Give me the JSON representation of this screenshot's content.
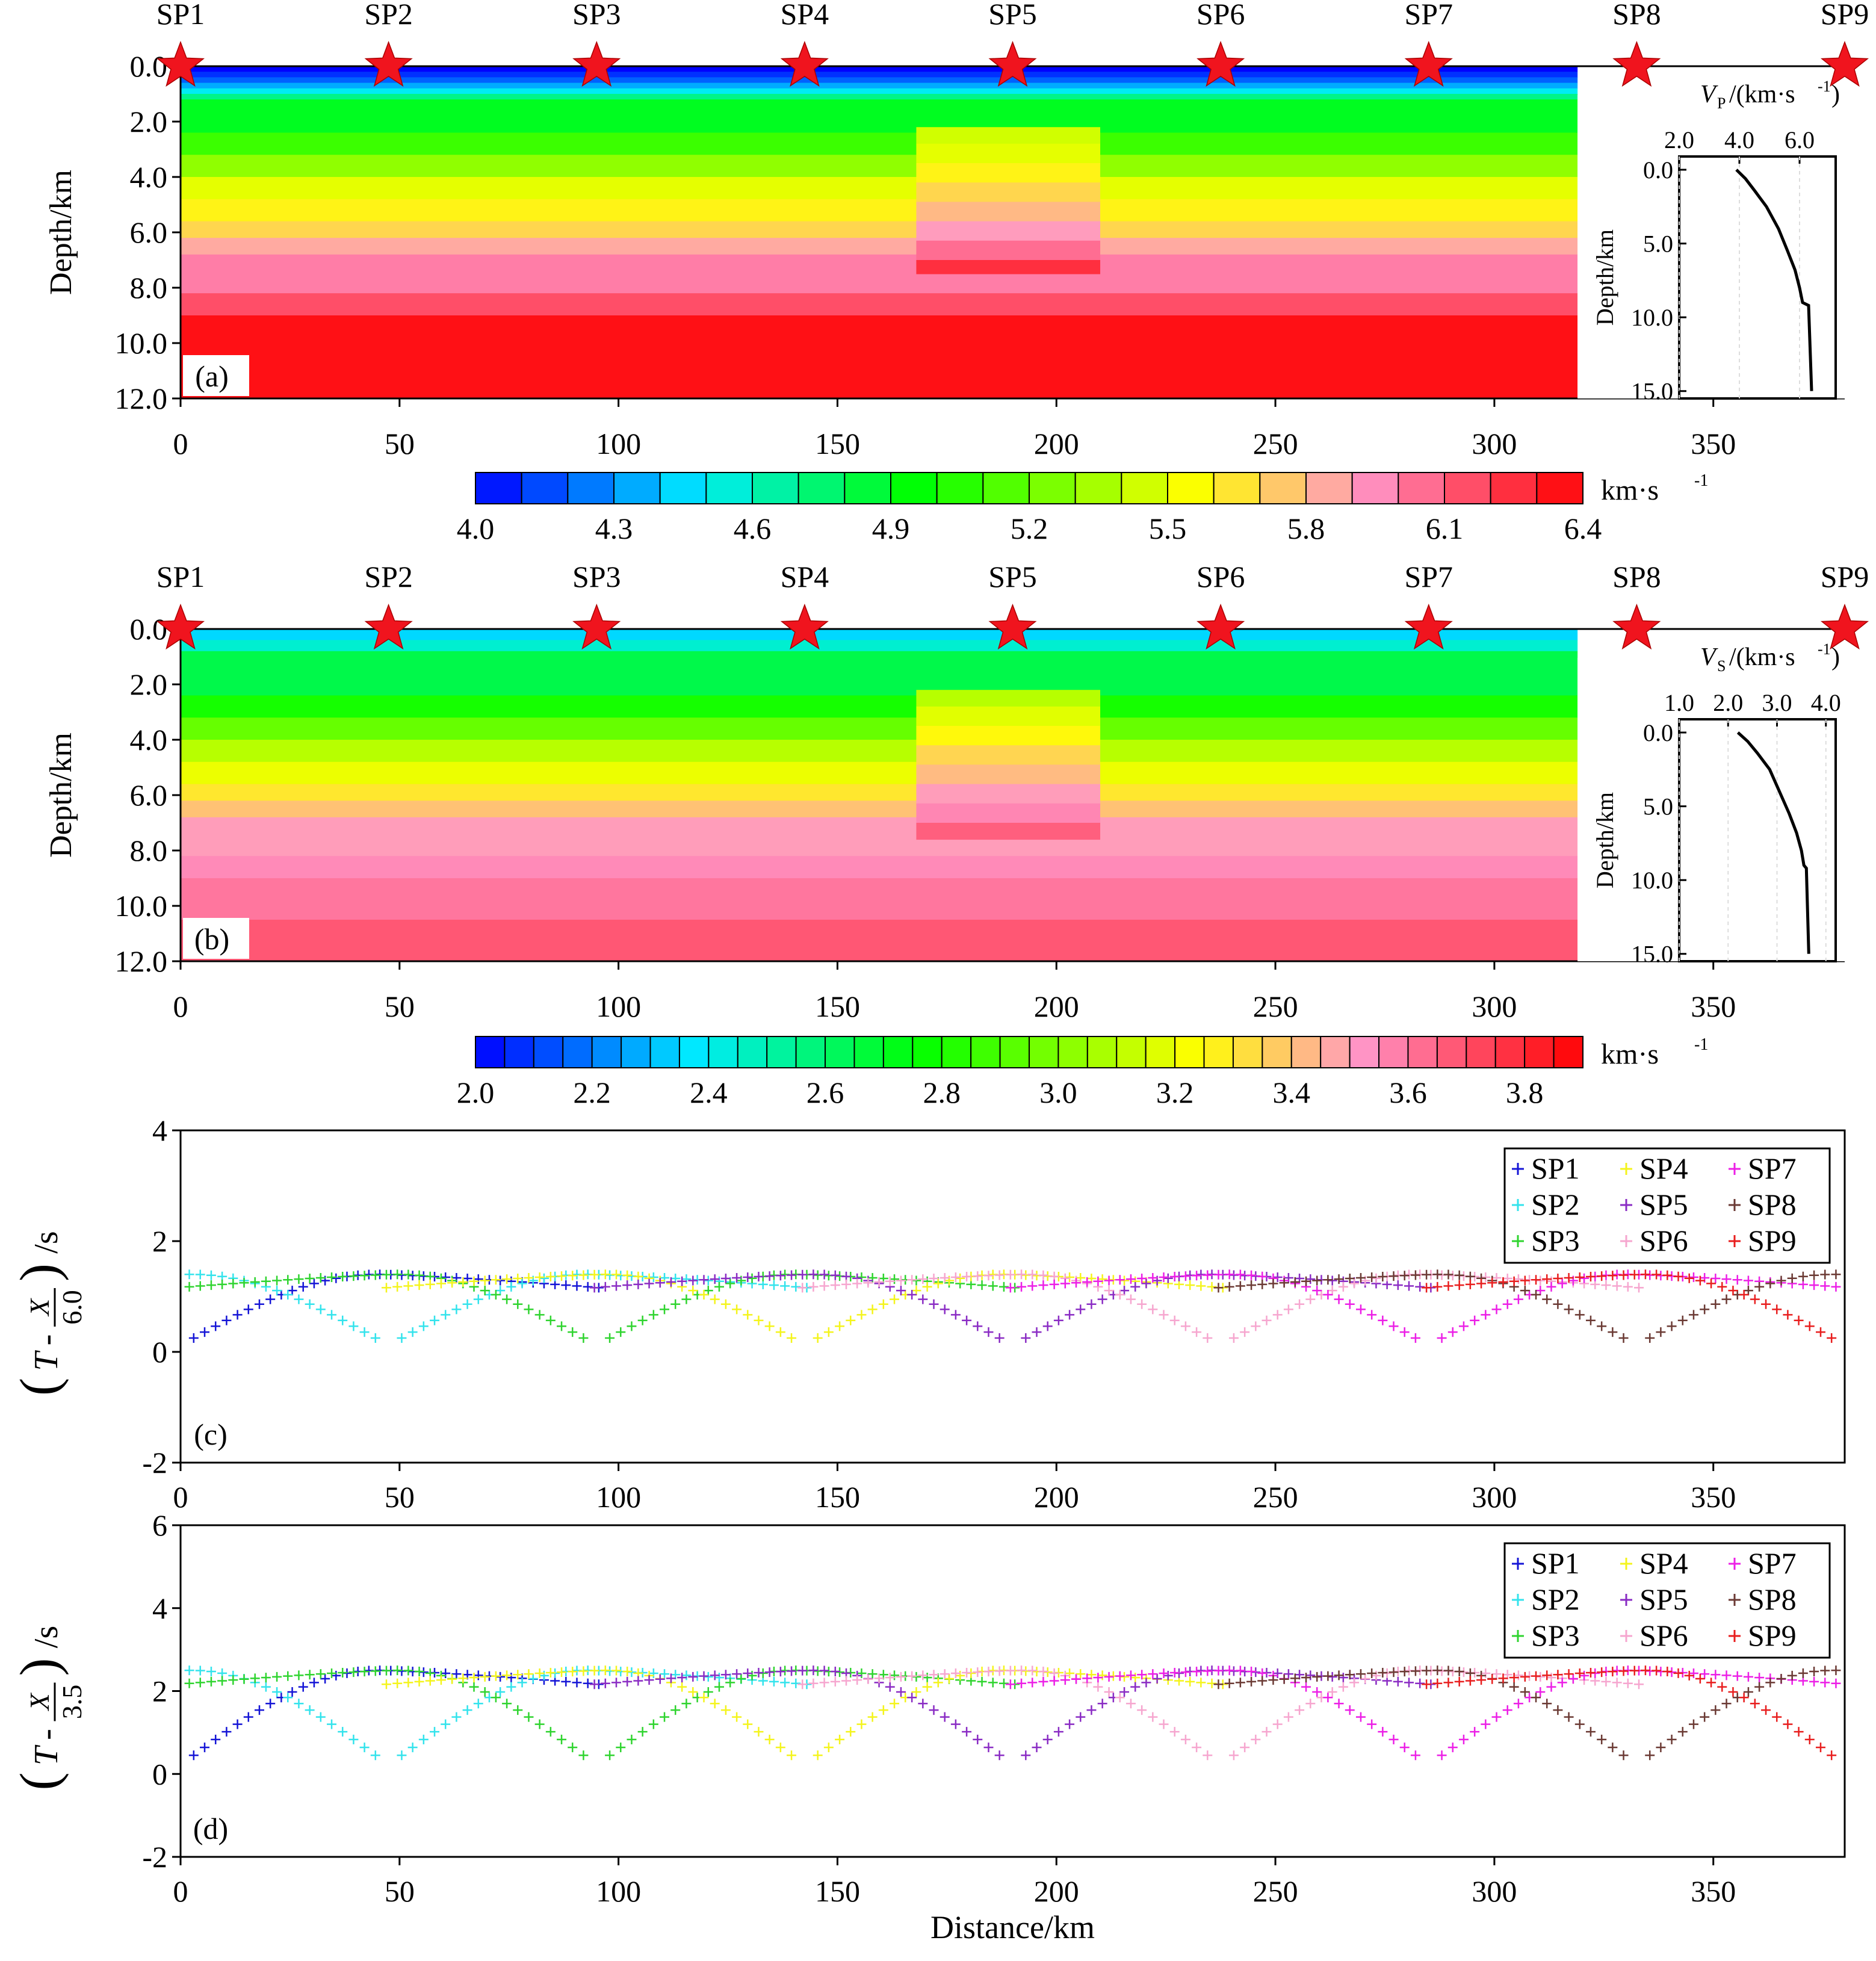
{
  "chart_data": [
    {
      "type": "heatmap",
      "panel_label": "(a)",
      "ylabel": "Depth/km",
      "xlim": [
        0,
        380
      ],
      "ylim": [
        0,
        12
      ],
      "xticks": [
        "0",
        "50",
        "100",
        "150",
        "200",
        "250",
        "300",
        "350"
      ],
      "yticks": [
        "0.0",
        "2.0",
        "4.0",
        "6.0",
        "8.0",
        "10.0",
        "12.0"
      ],
      "model_extent_km": 319,
      "shot_points": [
        {
          "label": "SP1",
          "x": 0
        },
        {
          "label": "SP2",
          "x": 47.5
        },
        {
          "label": "SP3",
          "x": 95
        },
        {
          "label": "SP4",
          "x": 142.5
        },
        {
          "label": "SP5",
          "x": 190
        },
        {
          "label": "SP6",
          "x": 237.5
        },
        {
          "label": "SP7",
          "x": 285
        },
        {
          "label": "SP8",
          "x": 332.5
        },
        {
          "label": "SP9",
          "x": 380
        }
      ],
      "layers": [
        {
          "top": 0.0,
          "bottom": 0.2,
          "v": 4.0
        },
        {
          "top": 0.2,
          "bottom": 0.4,
          "v": 4.1
        },
        {
          "top": 0.4,
          "bottom": 0.6,
          "v": 4.2
        },
        {
          "top": 0.6,
          "bottom": 0.8,
          "v": 4.35
        },
        {
          "top": 0.8,
          "bottom": 1.0,
          "v": 4.5
        },
        {
          "top": 1.0,
          "bottom": 1.2,
          "v": 4.7
        },
        {
          "top": 1.2,
          "bottom": 2.4,
          "v": 4.9
        },
        {
          "top": 2.4,
          "bottom": 3.2,
          "v": 5.1
        },
        {
          "top": 3.2,
          "bottom": 4.0,
          "v": 5.3
        },
        {
          "top": 4.0,
          "bottom": 4.8,
          "v": 5.5
        },
        {
          "top": 4.8,
          "bottom": 5.6,
          "v": 5.6
        },
        {
          "top": 5.6,
          "bottom": 6.2,
          "v": 5.7
        },
        {
          "top": 6.2,
          "bottom": 6.8,
          "v": 5.85
        },
        {
          "top": 6.8,
          "bottom": 8.2,
          "v": 6.0
        },
        {
          "top": 8.2,
          "bottom": 9.0,
          "v": 6.15
        },
        {
          "top": 9.0,
          "bottom": 12.0,
          "v": 6.35
        }
      ],
      "anomaly": {
        "x_range": [
          168,
          210
        ],
        "layers": [
          {
            "top": 2.2,
            "bottom": 2.8,
            "v": 5.45
          },
          {
            "top": 2.8,
            "bottom": 3.5,
            "v": 5.5
          },
          {
            "top": 3.5,
            "bottom": 4.2,
            "v": 5.6
          },
          {
            "top": 4.2,
            "bottom": 4.9,
            "v": 5.7
          },
          {
            "top": 4.9,
            "bottom": 5.6,
            "v": 5.8
          },
          {
            "top": 5.6,
            "bottom": 6.3,
            "v": 5.9
          },
          {
            "top": 6.3,
            "bottom": 7.0,
            "v": 6.05
          },
          {
            "top": 7.0,
            "bottom": 7.5,
            "v": 6.25
          }
        ]
      },
      "inset": {
        "xlabel_var": "V",
        "xlabel_sub": "P",
        "xlabel_unit": "/(km·s",
        "xlim": [
          2.0,
          7.2
        ],
        "ylim": [
          0,
          15.5
        ],
        "xticks": [
          "2.0",
          "4.0",
          "6.0"
        ],
        "yticks": [
          "0.0",
          "5.0",
          "10.0",
          "15.0"
        ],
        "ylabel": "Depth/km",
        "profile_velocity_km_s": [
          3.9,
          4.2,
          4.5,
          4.9,
          5.3,
          5.6,
          5.85,
          6.0,
          6.1,
          6.3,
          6.4
        ],
        "profile_depth_km": [
          0,
          0.6,
          1.4,
          2.5,
          4.0,
          5.5,
          6.8,
          8.0,
          9.0,
          9.2,
          15.0
        ]
      },
      "colorbar": {
        "min": 4.0,
        "max": 6.4,
        "ticks": [
          "4.0",
          "4.3",
          "4.6",
          "4.9",
          "5.2",
          "5.5",
          "5.8",
          "6.1",
          "6.4"
        ],
        "unit": "km·s",
        "unit_exp": "-1"
      }
    },
    {
      "type": "heatmap",
      "panel_label": "(b)",
      "ylabel": "Depth/km",
      "xlim": [
        0,
        380
      ],
      "ylim": [
        0,
        12
      ],
      "xticks": [
        "0",
        "50",
        "100",
        "150",
        "200",
        "250",
        "300",
        "350"
      ],
      "yticks": [
        "0.0",
        "2.0",
        "4.0",
        "6.0",
        "8.0",
        "10.0",
        "12.0"
      ],
      "model_extent_km": 319,
      "shot_points": [
        {
          "label": "SP1",
          "x": 0
        },
        {
          "label": "SP2",
          "x": 47.5
        },
        {
          "label": "SP3",
          "x": 95
        },
        {
          "label": "SP4",
          "x": 142.5
        },
        {
          "label": "SP5",
          "x": 190
        },
        {
          "label": "SP6",
          "x": 237.5
        },
        {
          "label": "SP7",
          "x": 285
        },
        {
          "label": "SP8",
          "x": 332.5
        },
        {
          "label": "SP9",
          "x": 380
        }
      ],
      "layers": [
        {
          "top": 0.0,
          "bottom": 0.4,
          "v": 2.35
        },
        {
          "top": 0.4,
          "bottom": 0.8,
          "v": 2.45
        },
        {
          "top": 0.8,
          "bottom": 2.4,
          "v": 2.65
        },
        {
          "top": 2.4,
          "bottom": 3.2,
          "v": 2.8
        },
        {
          "top": 3.2,
          "bottom": 4.0,
          "v": 2.95
        },
        {
          "top": 4.0,
          "bottom": 4.8,
          "v": 3.1
        },
        {
          "top": 4.8,
          "bottom": 5.6,
          "v": 3.2
        },
        {
          "top": 5.6,
          "bottom": 6.2,
          "v": 3.3
        },
        {
          "top": 6.2,
          "bottom": 6.8,
          "v": 3.4
        },
        {
          "top": 6.8,
          "bottom": 8.2,
          "v": 3.5
        },
        {
          "top": 8.2,
          "bottom": 9.0,
          "v": 3.55
        },
        {
          "top": 9.0,
          "bottom": 10.5,
          "v": 3.6
        },
        {
          "top": 10.5,
          "bottom": 12.0,
          "v": 3.68
        }
      ],
      "anomaly": {
        "x_range": [
          168,
          210
        ],
        "layers": [
          {
            "top": 2.2,
            "bottom": 2.8,
            "v": 3.1
          },
          {
            "top": 2.8,
            "bottom": 3.5,
            "v": 3.18
          },
          {
            "top": 3.5,
            "bottom": 4.2,
            "v": 3.25
          },
          {
            "top": 4.2,
            "bottom": 4.9,
            "v": 3.35
          },
          {
            "top": 4.9,
            "bottom": 5.6,
            "v": 3.42
          },
          {
            "top": 5.6,
            "bottom": 6.3,
            "v": 3.5
          },
          {
            "top": 6.3,
            "bottom": 7.0,
            "v": 3.56
          },
          {
            "top": 7.0,
            "bottom": 7.6,
            "v": 3.66
          }
        ]
      },
      "inset": {
        "xlabel_var": "V",
        "xlabel_sub": "S",
        "xlabel_unit": "/(km·s",
        "xlim": [
          1.0,
          4.2
        ],
        "ylim": [
          0,
          15.5
        ],
        "xticks": [
          "1.0",
          "2.0",
          "3.0",
          "4.0"
        ],
        "yticks": [
          "0.0",
          "5.0",
          "10.0",
          "15.0"
        ],
        "ylabel": "Depth/km",
        "profile_velocity_km_s": [
          2.2,
          2.4,
          2.6,
          2.85,
          3.05,
          3.25,
          3.4,
          3.5,
          3.55,
          3.6,
          3.65
        ],
        "profile_depth_km": [
          0,
          0.6,
          1.4,
          2.5,
          4.0,
          5.5,
          6.8,
          8.0,
          9.0,
          9.2,
          15.0
        ]
      },
      "colorbar": {
        "min": 2.0,
        "max": 3.9,
        "ticks": [
          "2.0",
          "2.2",
          "2.4",
          "2.6",
          "2.8",
          "3.0",
          "3.2",
          "3.4",
          "3.6",
          "3.8"
        ],
        "unit": "km·s",
        "unit_exp": "-1"
      }
    },
    {
      "type": "scatter",
      "panel_label": "(c)",
      "reduction_velocity": "6.0",
      "ylabel_T": "T",
      "ylabel_X": "X",
      "ylabel_unit": "/s",
      "xlim": [
        0,
        380
      ],
      "ylim": [
        -2,
        4
      ],
      "xticks": [
        "0",
        "50",
        "100",
        "150",
        "200",
        "250",
        "300",
        "350"
      ],
      "yticks": [
        "-2",
        "0",
        "2",
        "4"
      ],
      "near_gap_km": 3,
      "near_time_s": 0.25,
      "crossover_time_s": 1.4,
      "range_km": 97,
      "far_drop_s": 0.25,
      "series": [
        {
          "name": "SP1",
          "source_x": 0,
          "color": "#1515d6"
        },
        {
          "name": "SP2",
          "source_x": 47.5,
          "color": "#33e3ec"
        },
        {
          "name": "SP3",
          "source_x": 95,
          "color": "#2fd42f"
        },
        {
          "name": "SP4",
          "source_x": 142.5,
          "color": "#f4f41c"
        },
        {
          "name": "SP5",
          "source_x": 190,
          "color": "#8a2cc4"
        },
        {
          "name": "SP6",
          "source_x": 237.5,
          "color": "#f6a6cf"
        },
        {
          "name": "SP7",
          "source_x": 285,
          "color": "#ec1fe6"
        },
        {
          "name": "SP8",
          "source_x": 332.5,
          "color": "#6b3a34"
        },
        {
          "name": "SP9",
          "source_x": 380,
          "color": "#e81e1e"
        }
      ]
    },
    {
      "type": "scatter",
      "panel_label": "(d)",
      "reduction_velocity": "3.5",
      "ylabel_T": "T",
      "ylabel_X": "X",
      "ylabel_unit": "/s",
      "xlabel": "Distance/km",
      "xlim": [
        0,
        380
      ],
      "ylim": [
        -2,
        6
      ],
      "xticks": [
        "0",
        "50",
        "100",
        "150",
        "200",
        "250",
        "300",
        "350"
      ],
      "yticks": [
        "-2",
        "0",
        "2",
        "4",
        "6"
      ],
      "near_gap_km": 3,
      "near_time_s": 0.45,
      "crossover_time_s": 2.5,
      "range_km": 97,
      "far_drop_s": 0.35,
      "series": [
        {
          "name": "SP1",
          "source_x": 0,
          "color": "#1515d6"
        },
        {
          "name": "SP2",
          "source_x": 47.5,
          "color": "#33e3ec"
        },
        {
          "name": "SP3",
          "source_x": 95,
          "color": "#2fd42f"
        },
        {
          "name": "SP4",
          "source_x": 142.5,
          "color": "#f4f41c"
        },
        {
          "name": "SP5",
          "source_x": 190,
          "color": "#8a2cc4"
        },
        {
          "name": "SP6",
          "source_x": 237.5,
          "color": "#f6a6cf"
        },
        {
          "name": "SP7",
          "source_x": 285,
          "color": "#ec1fe6"
        },
        {
          "name": "SP8",
          "source_x": 332.5,
          "color": "#6b3a34"
        },
        {
          "name": "SP9",
          "source_x": 380,
          "color": "#e81e1e"
        }
      ]
    }
  ]
}
